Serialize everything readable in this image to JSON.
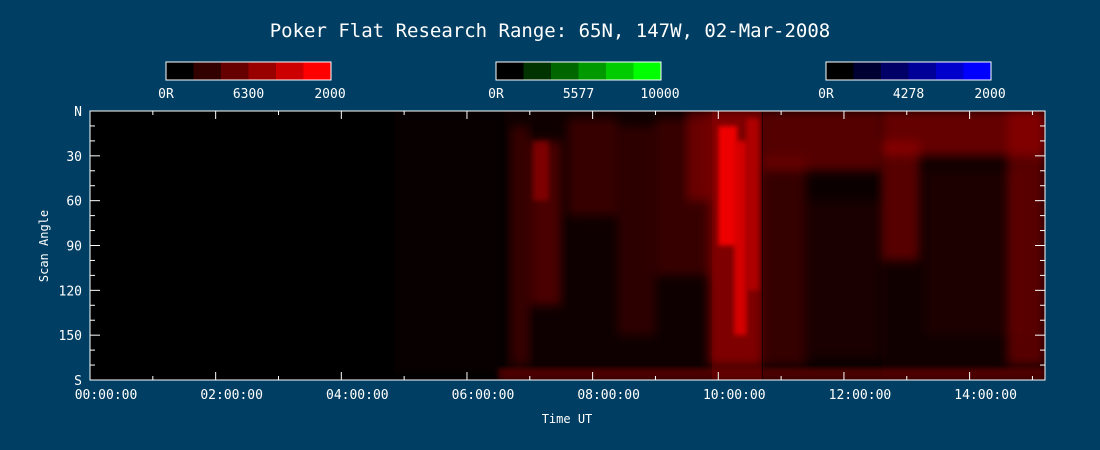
{
  "page": {
    "background": "#003f63"
  },
  "chart_data": {
    "type": "heatmap",
    "title": "Poker Flat Research Range: 65N, 147W, 02-Mar-2008",
    "xlabel": "Time UT",
    "ylabel": "Scan Angle",
    "x_ticks": [
      "00:00:00",
      "02:00:00",
      "04:00:00",
      "06:00:00",
      "08:00:00",
      "10:00:00",
      "12:00:00",
      "14:00:00"
    ],
    "x_range_hours": [
      0,
      15.2
    ],
    "y_ticks": [
      "N",
      "30",
      "60",
      "90",
      "120",
      "150",
      "S"
    ],
    "y_range_deg": [
      0,
      180
    ],
    "colorbars": [
      {
        "name": "red",
        "labels": [
          "0R",
          "6300",
          "2000"
        ],
        "color": "#ff0000",
        "steps": [
          "#000000",
          "#330000",
          "#660000",
          "#990000",
          "#cc0000",
          "#ff0000"
        ]
      },
      {
        "name": "green",
        "labels": [
          "0R",
          "5577",
          "10000"
        ],
        "color": "#00ff00",
        "steps": [
          "#000000",
          "#003300",
          "#006600",
          "#009900",
          "#00cc00",
          "#00ff00"
        ]
      },
      {
        "name": "blue",
        "labels": [
          "0R",
          "4278",
          "2000"
        ],
        "color": "#0000ff",
        "steps": [
          "#000000",
          "#000033",
          "#000066",
          "#000099",
          "#0000cc",
          "#0000ff"
        ]
      }
    ],
    "grid": false,
    "features": [
      {
        "t_start": 0.0,
        "t_end": 4.85,
        "intensity": 0.0
      },
      {
        "t_start": 4.85,
        "t_end": 6.6,
        "intensity": 0.1
      },
      {
        "t_start": 6.6,
        "t_end": 9.9,
        "intensity": 0.35
      },
      {
        "t_start": 9.9,
        "t_end": 10.7,
        "intensity": 0.85
      },
      {
        "t_start": 10.7,
        "t_end": 12.6,
        "intensity": 0.3
      },
      {
        "t_start": 12.6,
        "t_end": 15.2,
        "intensity": 0.4
      }
    ]
  }
}
